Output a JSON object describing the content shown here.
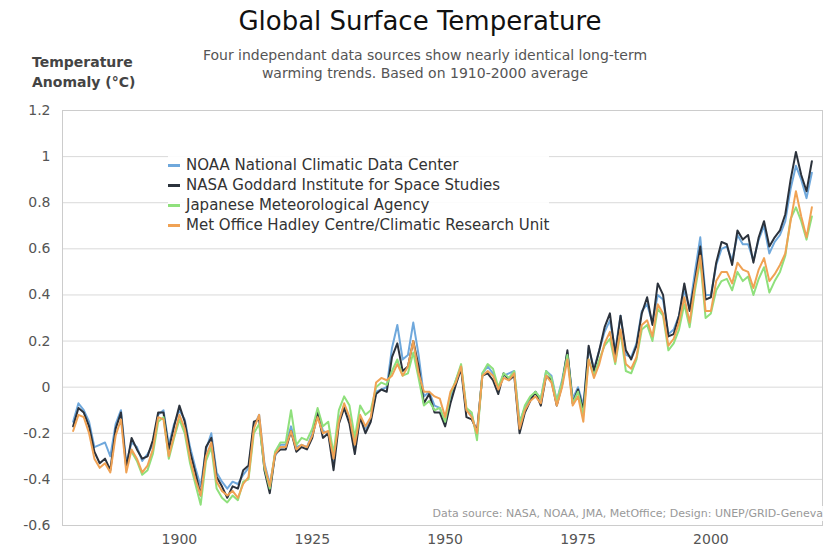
{
  "chart_data": {
    "type": "line",
    "title": "Global Surface Temperature",
    "subtitle": "Four independant data sources show nearly identical long-term warming trends. Based on 1910-2000 average",
    "y_label": "Temperature Anomaly (°C)",
    "caption": "Data source: NASA, NOAA, JMA, MetOffice; Design: UNEP/GRID-Geneva",
    "x": [
      1880,
      1881,
      1882,
      1883,
      1884,
      1885,
      1886,
      1887,
      1888,
      1889,
      1890,
      1891,
      1892,
      1893,
      1894,
      1895,
      1896,
      1897,
      1898,
      1899,
      1900,
      1901,
      1902,
      1903,
      1904,
      1905,
      1906,
      1907,
      1908,
      1909,
      1910,
      1911,
      1912,
      1913,
      1914,
      1915,
      1916,
      1917,
      1918,
      1919,
      1920,
      1921,
      1922,
      1923,
      1924,
      1925,
      1926,
      1927,
      1928,
      1929,
      1930,
      1931,
      1932,
      1933,
      1934,
      1935,
      1936,
      1937,
      1938,
      1939,
      1940,
      1941,
      1942,
      1943,
      1944,
      1945,
      1946,
      1947,
      1948,
      1949,
      1950,
      1951,
      1952,
      1953,
      1954,
      1955,
      1956,
      1957,
      1958,
      1959,
      1960,
      1961,
      1962,
      1963,
      1964,
      1965,
      1966,
      1967,
      1968,
      1969,
      1970,
      1971,
      1972,
      1973,
      1974,
      1975,
      1976,
      1977,
      1978,
      1979,
      1980,
      1981,
      1982,
      1983,
      1984,
      1985,
      1986,
      1987,
      1988,
      1989,
      1990,
      1991,
      1992,
      1993,
      1994,
      1995,
      1996,
      1997,
      1998,
      1999,
      2000,
      2001,
      2002,
      2003,
      2004,
      2005,
      2006,
      2007,
      2008,
      2009,
      2010,
      2011,
      2012,
      2013,
      2014,
      2015,
      2016,
      2017,
      2018,
      2019
    ],
    "series": [
      {
        "name": "NOAA National Climatic Data Center",
        "color": "#6fa8dc",
        "values": [
          -0.15,
          -0.07,
          -0.1,
          -0.15,
          -0.26,
          -0.25,
          -0.24,
          -0.3,
          -0.16,
          -0.1,
          -0.33,
          -0.24,
          -0.26,
          -0.32,
          -0.29,
          -0.25,
          -0.12,
          -0.1,
          -0.25,
          -0.16,
          -0.1,
          -0.14,
          -0.26,
          -0.35,
          -0.43,
          -0.27,
          -0.2,
          -0.37,
          -0.41,
          -0.44,
          -0.41,
          -0.42,
          -0.38,
          -0.35,
          -0.17,
          -0.12,
          -0.33,
          -0.42,
          -0.3,
          -0.25,
          -0.25,
          -0.17,
          -0.26,
          -0.25,
          -0.26,
          -0.2,
          -0.1,
          -0.19,
          -0.2,
          -0.32,
          -0.14,
          -0.08,
          -0.14,
          -0.27,
          -0.13,
          -0.18,
          -0.14,
          -0.02,
          -0.01,
          0.0,
          0.17,
          0.27,
          0.12,
          0.14,
          0.28,
          0.14,
          -0.04,
          -0.02,
          -0.08,
          -0.09,
          -0.16,
          -0.05,
          0.03,
          0.09,
          -0.1,
          -0.12,
          -0.21,
          0.06,
          0.09,
          0.06,
          -0.01,
          0.05,
          0.06,
          0.07,
          -0.15,
          -0.09,
          -0.05,
          -0.02,
          -0.05,
          0.07,
          0.05,
          -0.06,
          0.03,
          0.15,
          -0.05,
          0.0,
          -0.08,
          0.17,
          0.08,
          0.16,
          0.24,
          0.29,
          0.16,
          0.31,
          0.14,
          0.13,
          0.19,
          0.33,
          0.36,
          0.28,
          0.4,
          0.38,
          0.23,
          0.25,
          0.31,
          0.42,
          0.34,
          0.5,
          0.65,
          0.4,
          0.4,
          0.53,
          0.6,
          0.61,
          0.55,
          0.66,
          0.62,
          0.62,
          0.55,
          0.64,
          0.7,
          0.58,
          0.63,
          0.66,
          0.72,
          0.86,
          0.96,
          0.9,
          0.82,
          0.93
        ]
      },
      {
        "name": "NASA Goddard Institute for Space Studies",
        "color": "#2b323c",
        "values": [
          -0.17,
          -0.09,
          -0.11,
          -0.17,
          -0.28,
          -0.33,
          -0.31,
          -0.36,
          -0.18,
          -0.11,
          -0.35,
          -0.22,
          -0.27,
          -0.31,
          -0.3,
          -0.23,
          -0.11,
          -0.11,
          -0.27,
          -0.17,
          -0.08,
          -0.15,
          -0.28,
          -0.37,
          -0.47,
          -0.26,
          -0.22,
          -0.39,
          -0.43,
          -0.48,
          -0.43,
          -0.44,
          -0.36,
          -0.34,
          -0.15,
          -0.14,
          -0.36,
          -0.46,
          -0.29,
          -0.27,
          -0.27,
          -0.19,
          -0.28,
          -0.26,
          -0.27,
          -0.22,
          -0.11,
          -0.22,
          -0.2,
          -0.36,
          -0.16,
          -0.09,
          -0.16,
          -0.29,
          -0.13,
          -0.2,
          -0.15,
          -0.03,
          -0.01,
          -0.02,
          0.13,
          0.19,
          0.07,
          0.09,
          0.2,
          0.09,
          -0.07,
          -0.03,
          -0.11,
          -0.11,
          -0.17,
          -0.07,
          0.01,
          0.08,
          -0.13,
          -0.14,
          -0.19,
          0.05,
          0.06,
          0.03,
          -0.03,
          0.06,
          0.03,
          0.05,
          -0.2,
          -0.11,
          -0.06,
          -0.02,
          -0.08,
          0.05,
          0.03,
          -0.08,
          0.01,
          0.16,
          -0.07,
          -0.01,
          -0.1,
          0.18,
          0.07,
          0.16,
          0.26,
          0.32,
          0.14,
          0.31,
          0.16,
          0.12,
          0.18,
          0.32,
          0.39,
          0.27,
          0.45,
          0.4,
          0.22,
          0.23,
          0.31,
          0.45,
          0.33,
          0.46,
          0.61,
          0.38,
          0.39,
          0.54,
          0.63,
          0.62,
          0.53,
          0.68,
          0.64,
          0.66,
          0.54,
          0.65,
          0.72,
          0.61,
          0.65,
          0.68,
          0.75,
          0.9,
          1.02,
          0.92,
          0.85,
          0.98
        ]
      },
      {
        "name": "Japanese Meteorological Agency",
        "color": "#8fe07c",
        "values": [
          null,
          null,
          null,
          null,
          null,
          null,
          null,
          null,
          null,
          null,
          null,
          -0.28,
          -0.32,
          -0.38,
          -0.36,
          -0.29,
          -0.15,
          -0.13,
          -0.31,
          -0.22,
          -0.14,
          -0.2,
          -0.33,
          -0.42,
          -0.51,
          -0.32,
          -0.26,
          -0.44,
          -0.48,
          -0.5,
          -0.47,
          -0.49,
          -0.41,
          -0.4,
          -0.2,
          -0.16,
          -0.35,
          -0.44,
          -0.28,
          -0.24,
          -0.24,
          -0.1,
          -0.25,
          -0.22,
          -0.23,
          -0.18,
          -0.09,
          -0.17,
          -0.15,
          -0.29,
          -0.1,
          -0.04,
          -0.08,
          -0.22,
          -0.08,
          -0.12,
          -0.1,
          0.0,
          0.02,
          0.01,
          0.07,
          0.12,
          0.05,
          0.06,
          0.15,
          0.04,
          -0.08,
          -0.06,
          -0.1,
          -0.09,
          -0.15,
          -0.03,
          0.03,
          0.1,
          -0.09,
          -0.11,
          -0.23,
          0.06,
          0.1,
          0.08,
          0.0,
          0.06,
          0.04,
          0.07,
          -0.16,
          -0.08,
          -0.04,
          -0.02,
          -0.05,
          0.07,
          0.04,
          -0.06,
          0.02,
          0.14,
          -0.07,
          -0.02,
          -0.12,
          0.12,
          0.05,
          0.12,
          0.18,
          0.21,
          0.1,
          0.24,
          0.07,
          0.06,
          0.12,
          0.25,
          0.27,
          0.2,
          0.34,
          0.31,
          0.16,
          0.19,
          0.25,
          0.36,
          0.26,
          0.42,
          0.55,
          0.3,
          0.32,
          0.42,
          0.46,
          0.47,
          0.42,
          0.5,
          0.46,
          0.48,
          0.4,
          0.47,
          0.52,
          0.41,
          0.46,
          0.5,
          0.57,
          0.73,
          0.78,
          0.72,
          0.64,
          0.74
        ]
      },
      {
        "name": "Met Office Hadley Centre/Climatic Research Unit",
        "color": "#f0a254",
        "values": [
          -0.19,
          -0.12,
          -0.13,
          -0.2,
          -0.31,
          -0.35,
          -0.33,
          -0.37,
          -0.21,
          -0.14,
          -0.37,
          -0.27,
          -0.31,
          -0.37,
          -0.34,
          -0.27,
          -0.13,
          -0.14,
          -0.3,
          -0.21,
          -0.12,
          -0.18,
          -0.31,
          -0.4,
          -0.47,
          -0.3,
          -0.24,
          -0.41,
          -0.45,
          -0.47,
          -0.45,
          -0.48,
          -0.42,
          -0.39,
          -0.18,
          -0.12,
          -0.34,
          -0.43,
          -0.29,
          -0.26,
          -0.26,
          -0.19,
          -0.27,
          -0.25,
          -0.26,
          -0.21,
          -0.13,
          -0.2,
          -0.19,
          -0.31,
          -0.15,
          -0.07,
          -0.13,
          -0.25,
          -0.12,
          -0.17,
          -0.13,
          0.02,
          0.04,
          0.03,
          0.05,
          0.1,
          0.05,
          0.09,
          0.2,
          0.06,
          -0.02,
          -0.02,
          -0.04,
          -0.05,
          -0.13,
          -0.02,
          0.02,
          0.09,
          -0.1,
          -0.13,
          -0.2,
          0.05,
          0.07,
          0.05,
          -0.01,
          0.04,
          0.03,
          0.06,
          -0.18,
          -0.1,
          -0.06,
          -0.04,
          -0.07,
          0.05,
          0.02,
          -0.08,
          0.0,
          0.12,
          -0.08,
          -0.04,
          -0.15,
          0.12,
          0.04,
          0.1,
          0.19,
          0.24,
          0.11,
          0.25,
          0.1,
          0.08,
          0.13,
          0.27,
          0.29,
          0.22,
          0.36,
          0.32,
          0.18,
          0.21,
          0.28,
          0.39,
          0.28,
          0.44,
          0.57,
          0.33,
          0.33,
          0.46,
          0.5,
          0.5,
          0.45,
          0.54,
          0.51,
          0.5,
          0.43,
          0.51,
          0.56,
          0.46,
          0.49,
          0.53,
          0.58,
          0.72,
          0.85,
          0.74,
          0.65,
          0.78
        ]
      }
    ],
    "xlim": [
      1878,
      2021
    ],
    "xticks": [
      1900,
      1925,
      1950,
      1975,
      2000
    ],
    "ylim": [
      -0.6,
      1.2
    ],
    "yticks": [
      -0.6,
      -0.4,
      -0.2,
      0,
      0.2,
      0.4,
      0.6,
      0.8,
      1,
      1.2
    ],
    "grid": true,
    "legend": "top-left"
  }
}
